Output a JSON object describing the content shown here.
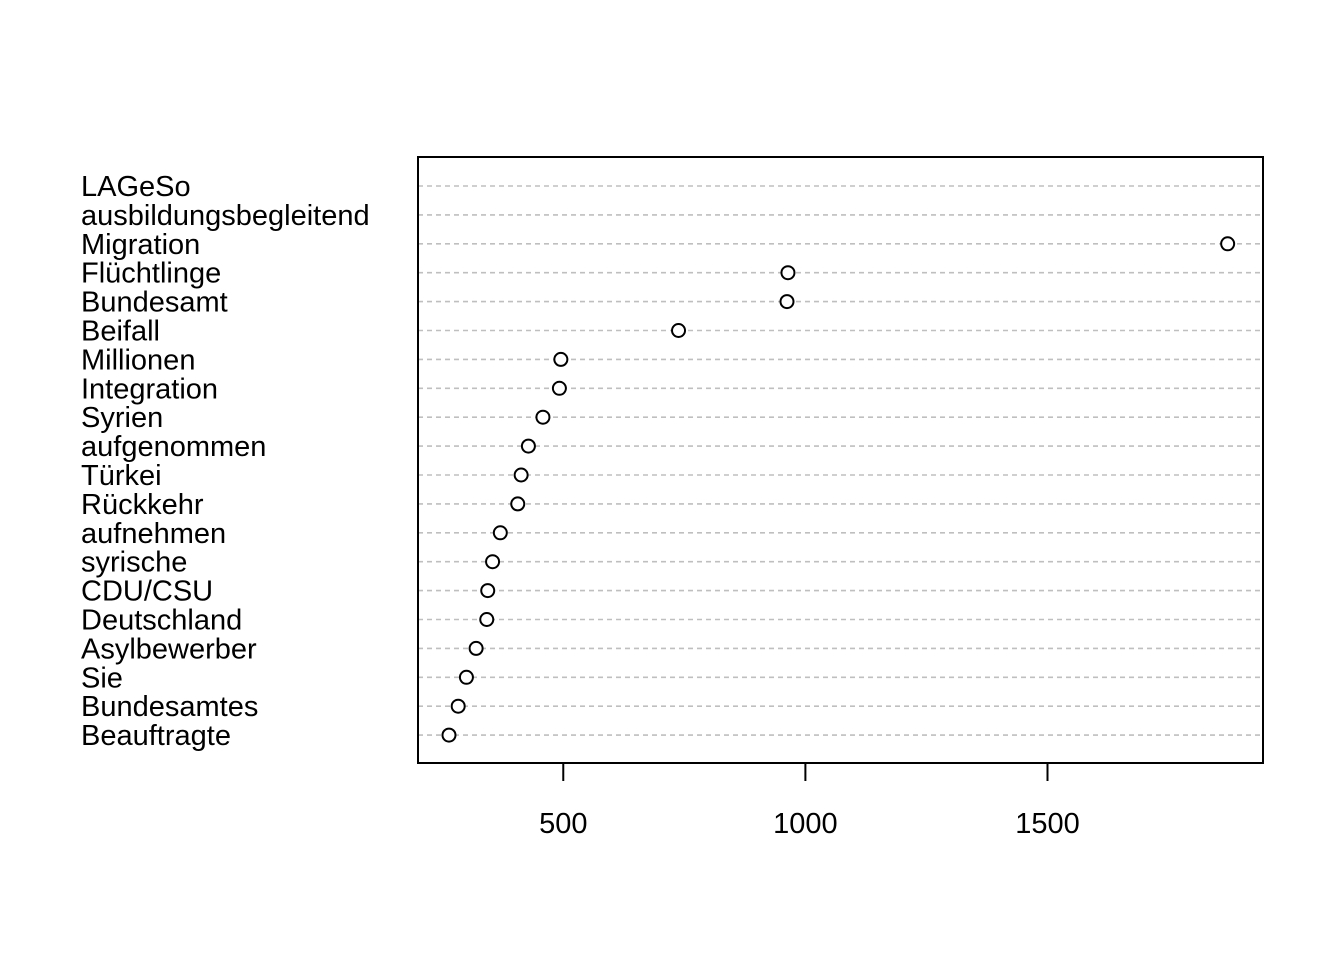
{
  "chart_data": {
    "type": "scatter",
    "title": "",
    "xlabel": "",
    "ylabel": "",
    "categories": [
      "LAGeSo",
      "ausbildungsbegleitend",
      "Migration",
      "Flüchtlinge",
      "Bundesamt",
      "Beifall",
      "Millionen",
      "Integration",
      "Syrien",
      "aufgenommen",
      "Türkei",
      "Rückkehr",
      "aufnehmen",
      "syrische",
      "CDU/CSU",
      "Deutschland",
      "Asylbewerber",
      "Sie",
      "Bundesamtes",
      "Beauftragte"
    ],
    "values": [
      null,
      null,
      1872,
      964,
      962,
      738,
      495,
      492,
      458,
      428,
      413,
      406,
      370,
      354,
      344,
      342,
      320,
      300,
      283,
      264
    ],
    "xlim": [
      200,
      1945
    ],
    "xticks": [
      500,
      1000,
      1500
    ],
    "xtick_labels": [
      "500",
      "1000",
      "1500"
    ],
    "grid": "dotted horizontal guide lines",
    "legend": "none"
  }
}
